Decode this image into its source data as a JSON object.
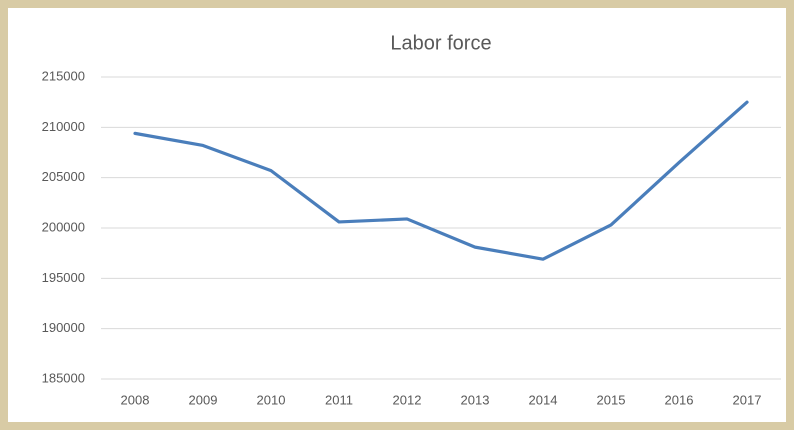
{
  "chart_data": {
    "type": "line",
    "title": "Labor force",
    "categories": [
      "2008",
      "2009",
      "2010",
      "2011",
      "2012",
      "2013",
      "2014",
      "2015",
      "2016",
      "2017"
    ],
    "series": [
      {
        "name": "Labor force",
        "color": "#4a7ebb",
        "values": [
          209400,
          208200,
          205700,
          200600,
          200900,
          198100,
          196900,
          200300,
          206500,
          212500
        ]
      }
    ],
    "ylim": [
      185000,
      215000
    ],
    "yticks": [
      185000,
      190000,
      195000,
      200000,
      205000,
      210000,
      215000
    ],
    "grid": true
  }
}
